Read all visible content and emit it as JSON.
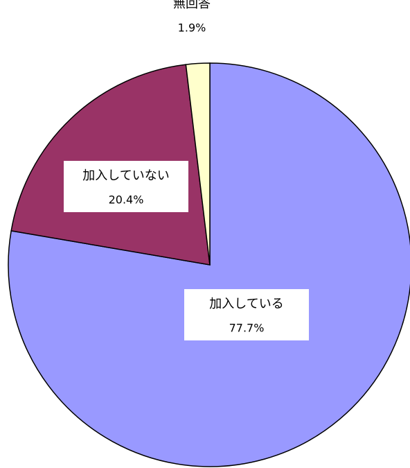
{
  "chart_data": {
    "type": "pie",
    "categories": [
      "加入している",
      "加入していない",
      "無回答"
    ],
    "values": [
      77.7,
      20.4,
      1.9
    ],
    "value_labels": [
      "77.7%",
      "20.4%",
      "1.9%"
    ],
    "colors": [
      "#9999ff",
      "#993366",
      "#ffffcc"
    ]
  }
}
